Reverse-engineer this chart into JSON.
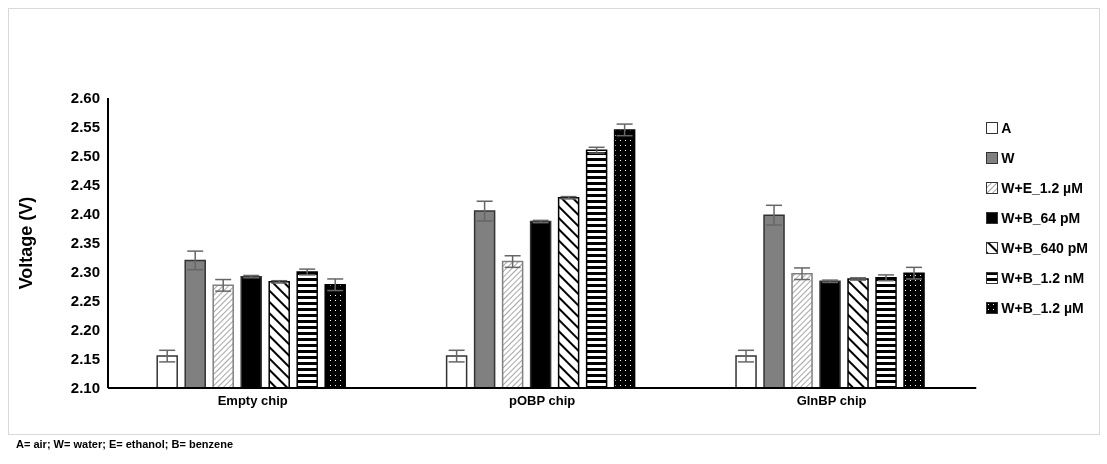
{
  "chart_data": {
    "type": "bar",
    "ylabel": "Voltage (V)",
    "categories": [
      "Empty chip",
      "pOBP chip",
      "GlnBP chip"
    ],
    "series": [
      {
        "name": "A",
        "color": "#ffffff",
        "values": [
          2.155,
          2.155,
          2.155
        ],
        "errors": [
          0.01,
          0.01,
          0.01
        ]
      },
      {
        "name": "W",
        "color": "#808080",
        "values": [
          2.32,
          2.405,
          2.398
        ],
        "errors": [
          0.016,
          0.017,
          0.017
        ]
      },
      {
        "name": "W+E_1.2 µM",
        "color": "#808080",
        "values": [
          2.277,
          2.318,
          2.297
        ],
        "errors": [
          0.01,
          0.01,
          0.01
        ]
      },
      {
        "name": "W+B_64 pM",
        "color": "#000000",
        "values": [
          2.292,
          2.387,
          2.284
        ],
        "errors": [
          0.002,
          0.002,
          0.002
        ]
      },
      {
        "name": "W+B_640 pM",
        "color": "#000000",
        "values": [
          2.283,
          2.428,
          2.288
        ],
        "errors": [
          0.002,
          0.002,
          0.002
        ]
      },
      {
        "name": "W+B_1.2 nM",
        "color": "#000000",
        "values": [
          2.3,
          2.51,
          2.29
        ],
        "errors": [
          0.005,
          0.005,
          0.005
        ]
      },
      {
        "name": "W+B_1.2 µM",
        "color": "#000000",
        "values": [
          2.278,
          2.545,
          2.298
        ],
        "errors": [
          0.01,
          0.01,
          0.01
        ]
      }
    ],
    "ylim": [
      2.1,
      2.6
    ],
    "yticks": [
      {
        "value": 2.1,
        "label": "2.10"
      },
      {
        "value": 2.15,
        "label": "2.15"
      },
      {
        "value": 2.2,
        "label": "2.20"
      },
      {
        "value": 2.25,
        "label": "2.25"
      },
      {
        "value": 2.3,
        "label": "2.30"
      },
      {
        "value": 2.35,
        "label": "2.35"
      },
      {
        "value": 2.4,
        "label": "2.40"
      },
      {
        "value": 2.45,
        "label": "2.45"
      },
      {
        "value": 2.5,
        "label": "2.50"
      },
      {
        "value": 2.55,
        "label": "2.55"
      },
      {
        "value": 2.6,
        "label": "2.60"
      }
    ],
    "grid": false,
    "legend": "right",
    "annotations": [
      "A= air; W= water; E= ethanol; B= benzene"
    ]
  }
}
